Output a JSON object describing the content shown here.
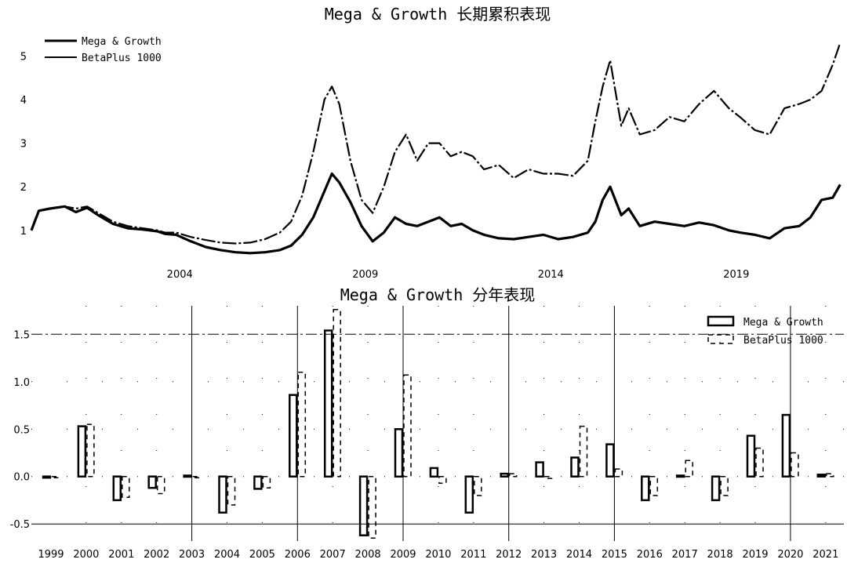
{
  "chart_data": [
    {
      "type": "line",
      "title": "Mega & Growth 长期累积表现",
      "xlabel": "",
      "ylabel": "",
      "xlim": [
        2000.0,
        2021.9
      ],
      "ylim": [
        0.35,
        5.6
      ],
      "yticks": [
        1,
        2,
        3,
        4,
        5
      ],
      "xticks": [
        2004,
        2009,
        2014,
        2019
      ],
      "grid": false,
      "legend": "top-left",
      "series": [
        {
          "name": "Mega & Growth",
          "style": "solid-thick",
          "x": [
            2000.0,
            2000.2,
            2000.5,
            2000.9,
            2001.2,
            2001.5,
            2001.8,
            2002.2,
            2002.6,
            2003.0,
            2003.4,
            2003.6,
            2003.9,
            2004.3,
            2004.7,
            2005.1,
            2005.5,
            2005.9,
            2006.3,
            2006.7,
            2007.0,
            2007.3,
            2007.6,
            2007.9,
            2008.1,
            2008.3,
            2008.6,
            2008.9,
            2009.2,
            2009.5,
            2009.8,
            2010.1,
            2010.4,
            2010.7,
            2011.0,
            2011.3,
            2011.6,
            2011.9,
            2012.2,
            2012.6,
            2013.0,
            2013.4,
            2013.8,
            2014.2,
            2014.6,
            2015.0,
            2015.2,
            2015.4,
            2015.6,
            2015.9,
            2016.1,
            2016.4,
            2016.8,
            2017.2,
            2017.6,
            2018.0,
            2018.4,
            2018.8,
            2019.1,
            2019.5,
            2019.9,
            2020.3,
            2020.7,
            2021.0,
            2021.3,
            2021.6,
            2021.8
          ],
          "y": [
            1.0,
            1.45,
            1.5,
            1.55,
            1.42,
            1.52,
            1.35,
            1.15,
            1.05,
            1.02,
            0.98,
            0.92,
            0.9,
            0.75,
            0.62,
            0.55,
            0.5,
            0.48,
            0.5,
            0.55,
            0.65,
            0.9,
            1.3,
            1.9,
            2.3,
            2.1,
            1.65,
            1.1,
            0.75,
            0.95,
            1.3,
            1.15,
            1.1,
            1.2,
            1.3,
            1.1,
            1.15,
            1.0,
            0.9,
            0.82,
            0.8,
            0.85,
            0.9,
            0.8,
            0.85,
            0.95,
            1.2,
            1.7,
            2.0,
            1.35,
            1.5,
            1.1,
            1.2,
            1.15,
            1.1,
            1.18,
            1.12,
            1.0,
            0.95,
            0.9,
            0.82,
            1.05,
            1.1,
            1.3,
            1.7,
            1.75,
            2.05
          ]
        },
        {
          "name": "BetaPlus 1000",
          "style": "dash-dot",
          "x": [
            2000.0,
            2000.2,
            2000.5,
            2000.9,
            2001.2,
            2001.5,
            2001.8,
            2002.2,
            2002.6,
            2003.0,
            2003.4,
            2003.6,
            2003.9,
            2004.3,
            2004.7,
            2005.1,
            2005.5,
            2005.9,
            2006.3,
            2006.7,
            2007.0,
            2007.3,
            2007.6,
            2007.9,
            2008.1,
            2008.3,
            2008.6,
            2008.9,
            2009.2,
            2009.5,
            2009.8,
            2010.1,
            2010.4,
            2010.7,
            2011.0,
            2011.3,
            2011.6,
            2011.9,
            2012.2,
            2012.6,
            2013.0,
            2013.4,
            2013.8,
            2014.2,
            2014.6,
            2015.0,
            2015.2,
            2015.4,
            2015.6,
            2015.9,
            2016.1,
            2016.4,
            2016.8,
            2017.2,
            2017.6,
            2018.0,
            2018.4,
            2018.8,
            2019.1,
            2019.5,
            2019.9,
            2020.3,
            2020.7,
            2021.0,
            2021.3,
            2021.6,
            2021.8
          ],
          "y": [
            1.0,
            1.45,
            1.5,
            1.55,
            1.5,
            1.55,
            1.4,
            1.2,
            1.1,
            1.05,
            1.0,
            0.95,
            0.95,
            0.85,
            0.78,
            0.72,
            0.7,
            0.72,
            0.8,
            0.95,
            1.2,
            1.8,
            2.8,
            4.0,
            4.3,
            3.9,
            2.6,
            1.7,
            1.4,
            2.0,
            2.8,
            3.2,
            2.6,
            3.0,
            3.0,
            2.7,
            2.8,
            2.7,
            2.4,
            2.5,
            2.2,
            2.4,
            2.3,
            2.3,
            2.25,
            2.6,
            3.5,
            4.3,
            4.9,
            3.4,
            3.8,
            3.2,
            3.3,
            3.6,
            3.5,
            3.9,
            4.2,
            3.8,
            3.6,
            3.3,
            3.2,
            3.8,
            3.9,
            4.0,
            4.2,
            4.8,
            5.3
          ]
        }
      ]
    },
    {
      "type": "bar",
      "title": "Mega & Growth 分年表现",
      "xlabel": "",
      "ylabel": "",
      "ylim": [
        -0.68,
        1.8
      ],
      "yticks": [
        -0.5,
        0.0,
        0.5,
        1.0,
        1.5
      ],
      "grid": true,
      "legend": "top-right",
      "categories": [
        "1999",
        "2000",
        "2001",
        "2002",
        "2003",
        "2004",
        "2005",
        "2006",
        "2007",
        "2008",
        "2009",
        "2010",
        "2011",
        "2012",
        "2013",
        "2014",
        "2015",
        "2016",
        "2017",
        "2018",
        "2019",
        "2020",
        "2021"
      ],
      "series": [
        {
          "name": "Mega & Growth",
          "style": "solid",
          "values": [
            0,
            0.53,
            -0.25,
            -0.12,
            0.01,
            -0.38,
            -0.13,
            0.86,
            1.54,
            -0.62,
            0.5,
            0.09,
            -0.38,
            0.03,
            0.15,
            0.2,
            0.34,
            -0.25,
            0.01,
            -0.25,
            0.43,
            0.65,
            0.02
          ]
        },
        {
          "name": "BetaPlus 1000",
          "style": "dashed",
          "values": [
            0,
            0.55,
            -0.22,
            -0.18,
            -0.01,
            -0.3,
            -0.12,
            1.1,
            1.76,
            -0.65,
            1.07,
            -0.07,
            -0.2,
            0.03,
            -0.02,
            0.53,
            0.08,
            -0.2,
            0.17,
            -0.2,
            0.3,
            0.25,
            0.03
          ]
        }
      ]
    }
  ]
}
